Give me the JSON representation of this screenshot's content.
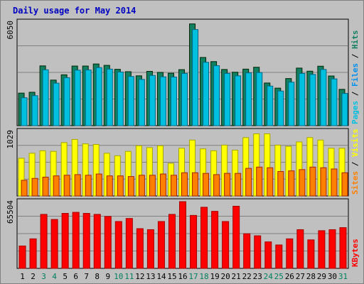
{
  "chart_data": {
    "type": "bar",
    "title": "Daily usage for May 2014",
    "categories": [
      "1",
      "2",
      "3",
      "4",
      "5",
      "6",
      "7",
      "8",
      "9",
      "10",
      "11",
      "12",
      "13",
      "14",
      "15",
      "16",
      "17",
      "18",
      "19",
      "20",
      "21",
      "22",
      "23",
      "24",
      "25",
      "26",
      "27",
      "28",
      "29",
      "30",
      "31"
    ],
    "weekend_days": [
      "3",
      "4",
      "10",
      "11",
      "17",
      "18",
      "24",
      "25",
      "31"
    ],
    "panels": [
      {
        "id": "pages-files-hits",
        "ymax_label": "6050",
        "ylim": [
          0,
          6050
        ],
        "legend": [
          {
            "text": "Pages",
            "color": "#00c0e0"
          },
          {
            "text": "Files",
            "color": "#0090f0"
          },
          {
            "text": "Hits",
            "color": "#108060"
          }
        ],
        "series": [
          {
            "name": "Hits",
            "color": "#108060",
            "values": [
              1900,
              1950,
              3490,
              2660,
              2970,
              3480,
              3480,
              3600,
              3520,
              3290,
              3150,
              2910,
              3170,
              3110,
              3060,
              3270,
              5940,
              3980,
              3740,
              3280,
              3120,
              3300,
              3410,
              2490,
              2190,
              2750,
              3360,
              3180,
              3470,
              2900,
              2120
            ]
          },
          {
            "name": "Pages",
            "color": "#00c0e0",
            "values": [
              1630,
              1750,
              3260,
              2480,
              2800,
              3240,
              3250,
              3390,
              3300,
              3130,
              2870,
              2700,
              2930,
              2850,
              2840,
              3050,
              5610,
              3700,
              3500,
              3050,
              2910,
              3080,
              3100,
              2310,
              2020,
              2540,
              3050,
              2990,
              3280,
              2730,
              1880
            ]
          }
        ]
      },
      {
        "id": "sites-visits",
        "ymax_label": "1029",
        "ylim": [
          0,
          1029
        ],
        "legend": [
          {
            "text": "Sites",
            "color": "#ff8000"
          },
          {
            "text": "Visits",
            "color": "#ffff00"
          }
        ],
        "series": [
          {
            "name": "Visits",
            "color": "#ffff00",
            "values": [
              600,
              680,
              720,
              710,
              850,
              900,
              830,
              820,
              680,
              640,
              710,
              800,
              770,
              800,
              520,
              760,
              890,
              750,
              720,
              810,
              730,
              930,
              990,
              990,
              810,
              790,
              860,
              930,
              890,
              760,
              760
            ]
          },
          {
            "name": "Sites",
            "color": "#ff8000",
            "values": [
              250,
              280,
              300,
              320,
              330,
              340,
              330,
              350,
              320,
              320,
              310,
              330,
              330,
              350,
              330,
              370,
              370,
              360,
              340,
              360,
              360,
              440,
              460,
              450,
              390,
              400,
              420,
              460,
              450,
              430,
              370
            ]
          }
        ]
      },
      {
        "id": "kbytes",
        "ymax_label": "65504",
        "ylim": [
          0,
          65504
        ],
        "legend": [
          {
            "text": "KBytes",
            "color": "#ff0000"
          }
        ],
        "series": [
          {
            "name": "KBytes",
            "color": "#ff0000",
            "values": [
              22000,
              29000,
              53000,
              48000,
              54000,
              55000,
              54000,
              53000,
              51000,
              46000,
              49000,
              39000,
              38000,
              46000,
              53000,
              65504,
              52000,
              60000,
              56000,
              46000,
              61000,
              34000,
              32000,
              26000,
              23000,
              29000,
              38000,
              28000,
              37000,
              38000,
              40000
            ]
          }
        ]
      }
    ]
  }
}
